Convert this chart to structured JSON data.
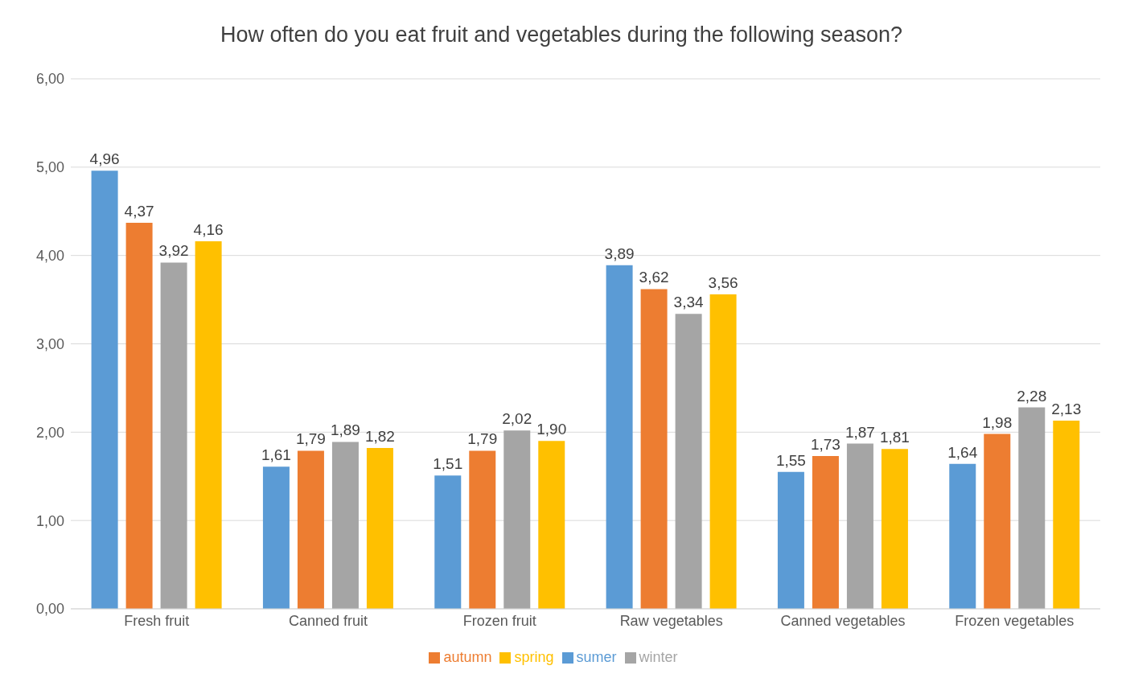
{
  "chart_data": {
    "type": "bar",
    "title": "How often do you eat fruit and vegetables during the following season?",
    "categories": [
      "Fresh fruit",
      "Canned fruit",
      "Frozen fruit",
      "Raw vegetables",
      "Canned vegetables",
      "Frozen vegetables"
    ],
    "series": [
      {
        "name": "sumer",
        "color": "#5b9bd5",
        "values": [
          4.96,
          1.61,
          1.51,
          3.89,
          1.55,
          1.64
        ],
        "value_labels": [
          "4,96",
          "1,61",
          "1,51",
          "3,89",
          "1,55",
          "1,64"
        ]
      },
      {
        "name": "autumn",
        "color": "#ed7d31",
        "values": [
          4.37,
          1.79,
          1.79,
          3.62,
          1.73,
          1.98
        ],
        "value_labels": [
          "4,37",
          "1,79",
          "1,79",
          "3,62",
          "1,73",
          "1,98"
        ]
      },
      {
        "name": "winter",
        "color": "#a5a5a5",
        "values": [
          3.92,
          1.89,
          2.02,
          3.34,
          1.87,
          2.28
        ],
        "value_labels": [
          "3,92",
          "1,89",
          "2,02",
          "3,34",
          "1,87",
          "2,28"
        ]
      },
      {
        "name": "spring",
        "color": "#ffc000",
        "values": [
          4.16,
          1.82,
          1.9,
          3.56,
          1.81,
          2.13
        ],
        "value_labels": [
          "4,16",
          "1,82",
          "1,90",
          "3,56",
          "1,81",
          "2,13"
        ]
      }
    ],
    "ylim": [
      0,
      6
    ],
    "yticks": [
      {
        "value": 0,
        "label": "0,00"
      },
      {
        "value": 1,
        "label": "1,00"
      },
      {
        "value": 2,
        "label": "2,00"
      },
      {
        "value": 3,
        "label": "3,00"
      },
      {
        "value": 4,
        "label": "4,00"
      },
      {
        "value": 5,
        "label": "5,00"
      },
      {
        "value": 6,
        "label": "6,00"
      }
    ],
    "grid": "y",
    "legend": "bottom"
  }
}
